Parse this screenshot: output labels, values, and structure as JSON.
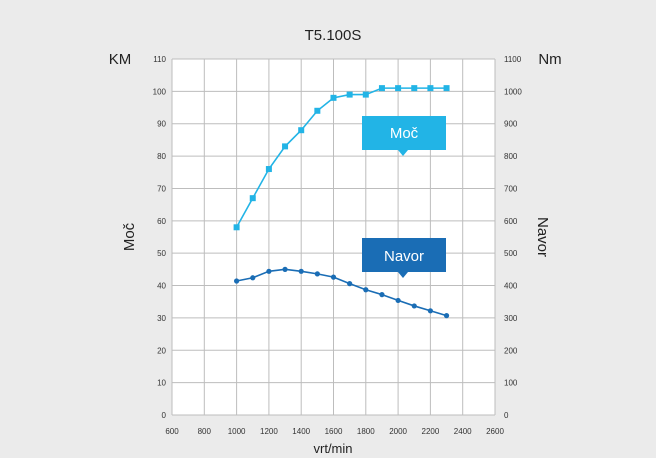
{
  "chart_data": {
    "type": "line",
    "title": "T5.100S",
    "xlabel": "vrt/min",
    "ylabel_left": "Moč",
    "ylabel_right": "Navor",
    "unit_left": "KM",
    "unit_right": "Nm",
    "xlim": [
      600,
      2600
    ],
    "x_ticks": [
      "600",
      "800",
      "1000",
      "1200",
      "1400",
      "1600",
      "1800",
      "2000",
      "2200",
      "2400",
      "2600"
    ],
    "ylim_left": [
      0,
      110
    ],
    "y_left_ticks": [
      "0",
      "10",
      "20",
      "30",
      "40",
      "50",
      "60",
      "70",
      "80",
      "90",
      "100",
      "110"
    ],
    "ylim_right": [
      0,
      1100
    ],
    "y_right_ticks": [
      "0",
      "100",
      "200",
      "300",
      "400",
      "500",
      "600",
      "700",
      "800",
      "900",
      "1000",
      "1100"
    ],
    "grid": true,
    "series": [
      {
        "name": "Moč",
        "axis": "left",
        "color": "#22b4e6",
        "marker": "square",
        "x": [
          1000,
          1100,
          1200,
          1300,
          1400,
          1500,
          1600,
          1700,
          1800,
          1900,
          2000,
          2100,
          2200,
          2300
        ],
        "y": [
          58,
          67,
          76,
          83,
          88,
          94,
          98,
          99,
          99,
          101,
          101,
          101,
          101,
          101
        ]
      },
      {
        "name": "Navor",
        "axis": "right",
        "color": "#1a6db5",
        "marker": "circle",
        "x": [
          1000,
          1100,
          1200,
          1300,
          1400,
          1500,
          1600,
          1700,
          1800,
          1900,
          2000,
          2100,
          2200,
          2300
        ],
        "y": [
          414,
          424,
          444,
          450,
          444,
          436,
          426,
          406,
          387,
          372,
          354,
          337,
          322,
          307
        ]
      }
    ]
  }
}
